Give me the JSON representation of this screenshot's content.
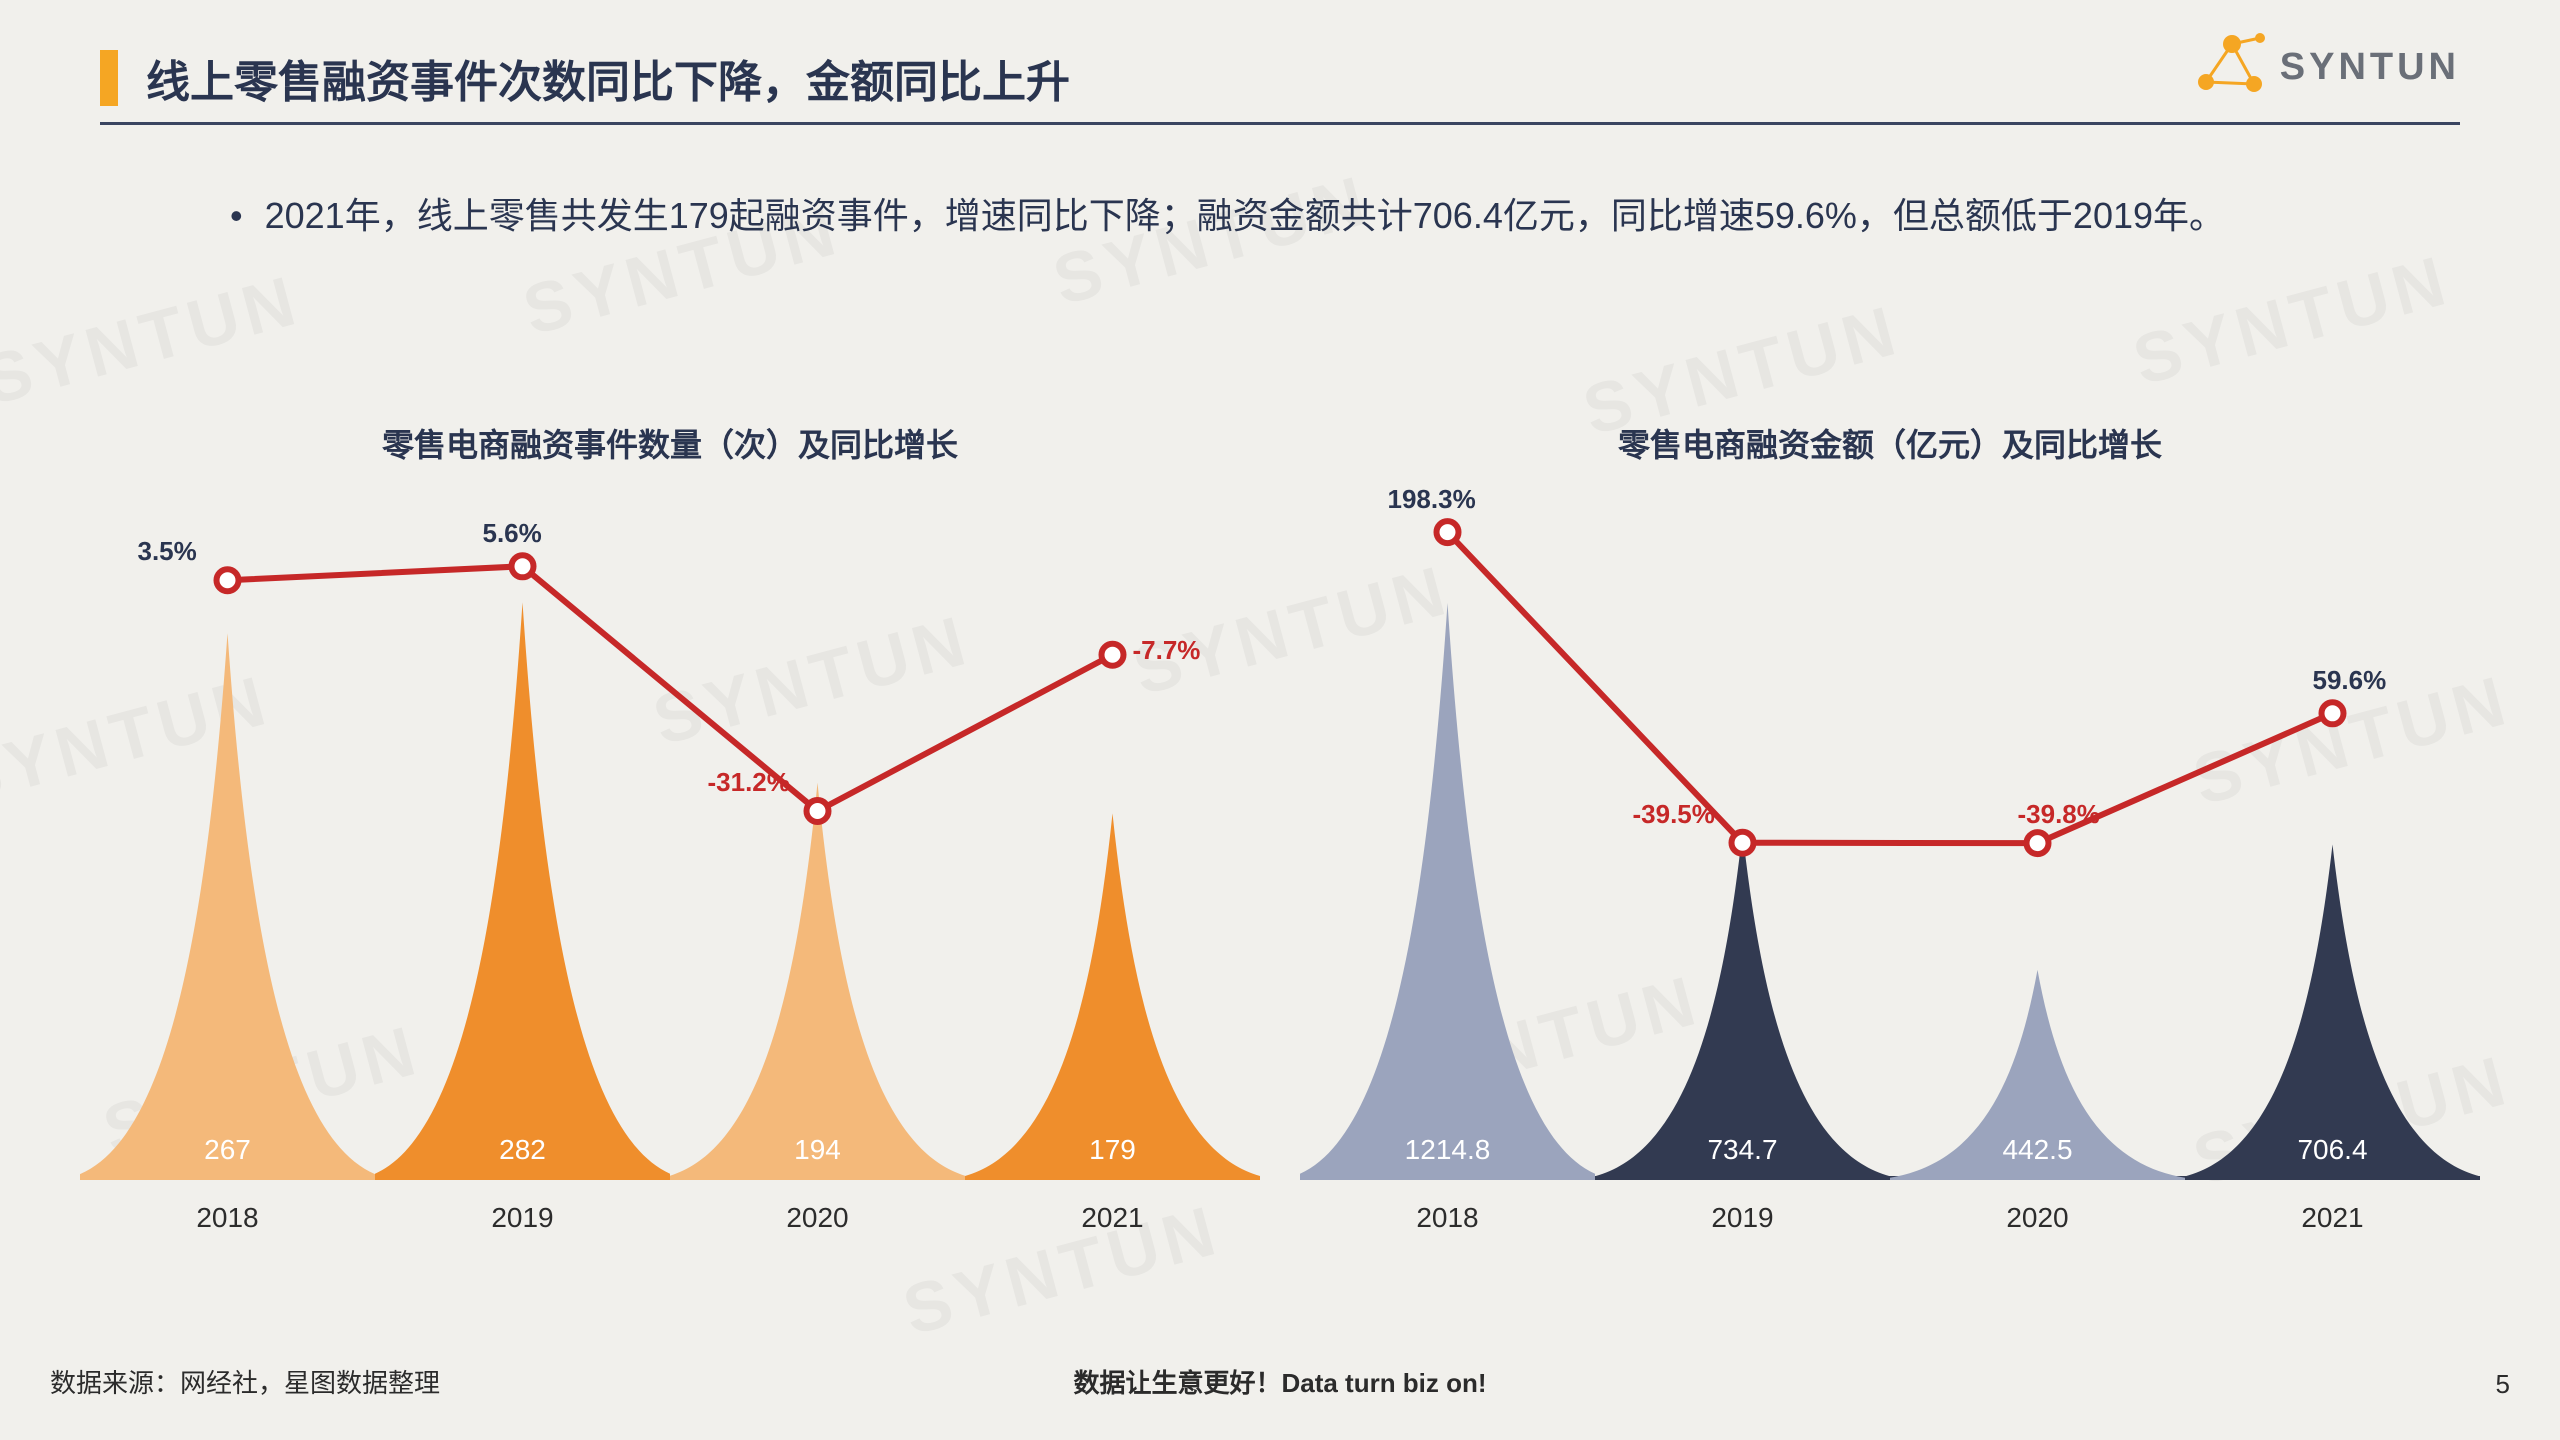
{
  "header": {
    "title": "线上零售融资事件次数同比下降，金额同比上升",
    "accent_color": "#f5a623",
    "rule_color": "#3a4560"
  },
  "logo": {
    "text": "SYNTUN",
    "color": "#f5a623"
  },
  "bullet": {
    "text": "2021年，线上零售共发生179起融资事件，增速同比下降；融资金额共计706.4亿元，同比增速59.6%，但总额低于2019年。"
  },
  "watermark_text": "SYNTUN",
  "chart_left": {
    "title": "零售电商融资事件数量（次）及同比增长",
    "type": "peak+line",
    "categories": [
      "2018",
      "2019",
      "2020",
      "2021"
    ],
    "values": [
      267,
      282,
      194,
      179
    ],
    "value_labels": [
      "267",
      "282",
      "194",
      "179"
    ],
    "peak_colors": [
      "#f4b97a",
      "#ef8e2c",
      "#f4b97a",
      "#ef8e2c"
    ],
    "baseline_color": "#ef8e2c",
    "y_max": 320,
    "line_values": [
      3.5,
      5.6,
      -31.2,
      -7.7
    ],
    "line_labels": [
      "3.5%",
      "5.6%",
      "-31.2%",
      "-7.7%"
    ],
    "line_y_range": [
      -40,
      15
    ],
    "line_color": "#c62828",
    "marker_fill": "#ffffff",
    "label_fontsize": 26
  },
  "chart_right": {
    "title": "零售电商融资金额（亿元）及同比增长",
    "type": "peak+line",
    "categories": [
      "2018",
      "2019",
      "2020",
      "2021"
    ],
    "values": [
      1214.8,
      734.7,
      442.5,
      706.4
    ],
    "value_labels": [
      "1214.8",
      "734.7",
      "442.5",
      "706.4"
    ],
    "peak_colors": [
      "#9ba4bd",
      "#323a51",
      "#9ba4bd",
      "#323a51"
    ],
    "baseline_color": "#323a51",
    "y_max": 1380,
    "line_values": [
      198.3,
      -39.5,
      -39.8,
      59.6
    ],
    "line_labels": [
      "198.3%",
      "-39.5%",
      "-39.8%",
      "59.6%"
    ],
    "line_y_range": [
      -60,
      220
    ],
    "line_color": "#c62828",
    "marker_fill": "#ffffff",
    "label_fontsize": 26
  },
  "footer": {
    "source": "数据来源：网经社，星图数据整理",
    "slogan": "数据让生意更好！Data turn biz on!",
    "page": "5"
  },
  "background_color": "#f1f0ec"
}
